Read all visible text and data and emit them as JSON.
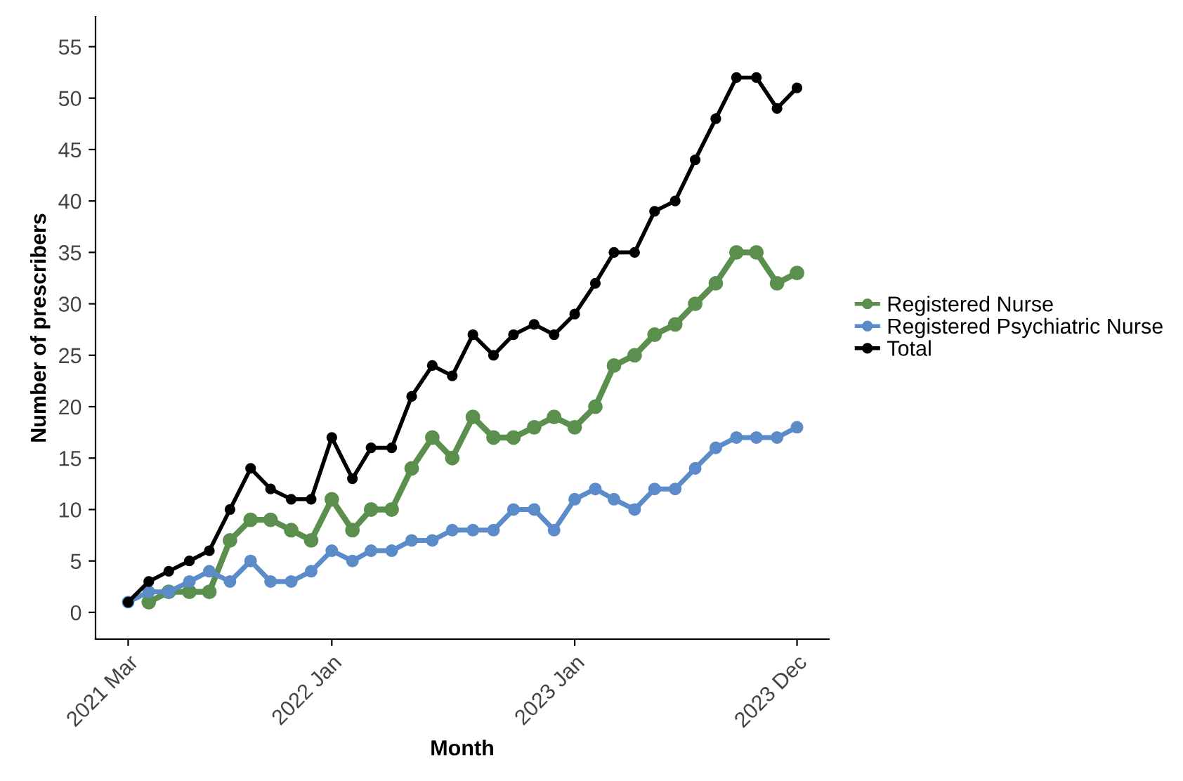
{
  "chart_data": {
    "type": "line",
    "xlabel": "Month",
    "ylabel": "Number of prescribers",
    "x": [
      "2021-03",
      "2021-04",
      "2021-05",
      "2021-06",
      "2021-07",
      "2021-08",
      "2021-09",
      "2021-10",
      "2021-11",
      "2021-12",
      "2022-01",
      "2022-02",
      "2022-03",
      "2022-04",
      "2022-05",
      "2022-06",
      "2022-07",
      "2022-08",
      "2022-09",
      "2022-10",
      "2022-11",
      "2022-12",
      "2023-01",
      "2023-02",
      "2023-03",
      "2023-04",
      "2023-05",
      "2023-06",
      "2023-07",
      "2023-08",
      "2023-09",
      "2023-10",
      "2023-11",
      "2023-12"
    ],
    "series": [
      {
        "name": "Registered Nurse",
        "color": "#5b8f4e",
        "values": [
          null,
          1,
          2,
          2,
          2,
          7,
          9,
          9,
          8,
          7,
          11,
          8,
          10,
          10,
          14,
          17,
          15,
          19,
          17,
          17,
          18,
          19,
          18,
          20,
          24,
          25,
          27,
          28,
          30,
          32,
          35,
          35,
          32,
          33
        ]
      },
      {
        "name": "Registered Psychiatric Nurse",
        "color": "#5b8bc9",
        "values": [
          1,
          2,
          2,
          3,
          4,
          3,
          5,
          3,
          3,
          4,
          6,
          5,
          6,
          6,
          7,
          7,
          8,
          8,
          8,
          10,
          10,
          8,
          11,
          12,
          11,
          10,
          12,
          12,
          14,
          16,
          17,
          17,
          17,
          18
        ]
      },
      {
        "name": "Total",
        "color": "#000000",
        "values": [
          1,
          3,
          4,
          5,
          6,
          10,
          14,
          12,
          11,
          11,
          17,
          13,
          16,
          16,
          21,
          24,
          23,
          27,
          25,
          27,
          28,
          27,
          29,
          32,
          35,
          35,
          39,
          40,
          44,
          48,
          52,
          52,
          49,
          51
        ]
      }
    ],
    "xlim": [
      "2021-01-11",
      "2024-01-18"
    ],
    "xticks": [
      {
        "value": "2021-03",
        "label": "2021 Mar"
      },
      {
        "value": "2022-01",
        "label": "2022 Jan"
      },
      {
        "value": "2023-01",
        "label": "2023 Jan"
      },
      {
        "value": "2023-12",
        "label": "2023 Dec"
      }
    ],
    "ylim": [
      -2.6,
      57.9
    ],
    "yticks": [
      0,
      5,
      10,
      15,
      20,
      25,
      30,
      35,
      40,
      45,
      50,
      55
    ],
    "grid": false,
    "legend": "right",
    "marker": "circle",
    "line_style": "solid"
  }
}
